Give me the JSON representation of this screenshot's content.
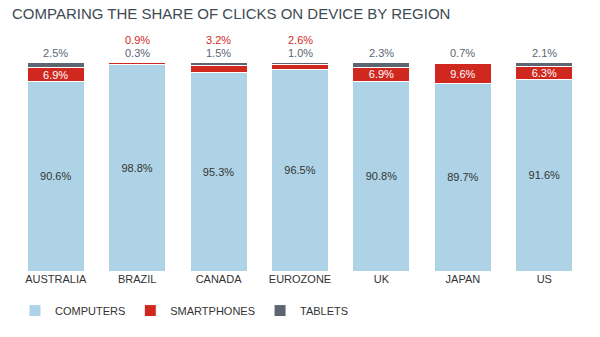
{
  "chart_data": {
    "type": "bar",
    "title": "COMPARING THE SHARE OF CLICKS ON DEVICE BY REGION",
    "categories": [
      "AUSTRALIA",
      "BRAZIL",
      "CANADA",
      "EUROZONE",
      "UK",
      "JAPAN",
      "US"
    ],
    "series": [
      {
        "name": "COMPUTERS",
        "color": "#aed3e6",
        "values": [
          90.6,
          98.8,
          95.3,
          96.5,
          90.8,
          89.7,
          91.6
        ],
        "value_labels": [
          "90.6%",
          "98.8%",
          "95.3%",
          "96.5%",
          "90.8%",
          "89.7%",
          "91.6%"
        ]
      },
      {
        "name": "SMARTPHONES",
        "color": "#d0281f",
        "values": [
          6.9,
          0.9,
          3.2,
          2.6,
          6.9,
          9.6,
          6.3
        ],
        "value_labels": [
          "6.9%",
          "0.9%",
          "3.2%",
          "2.6%",
          "6.9%",
          "9.6%",
          "6.3%"
        ]
      },
      {
        "name": "TABLETS",
        "color": "#5c6670",
        "values": [
          2.5,
          0.3,
          1.5,
          1.0,
          2.3,
          0.7,
          2.1
        ],
        "value_labels": [
          "2.5%",
          "0.3%",
          "1.5%",
          "1.0%",
          "2.3%",
          "0.7%",
          "2.1%"
        ]
      }
    ],
    "stacked": true,
    "data_labels": true,
    "tick_labels": "x",
    "legend": "bottom",
    "grid": false,
    "ylim": [
      0,
      100.1
    ]
  }
}
